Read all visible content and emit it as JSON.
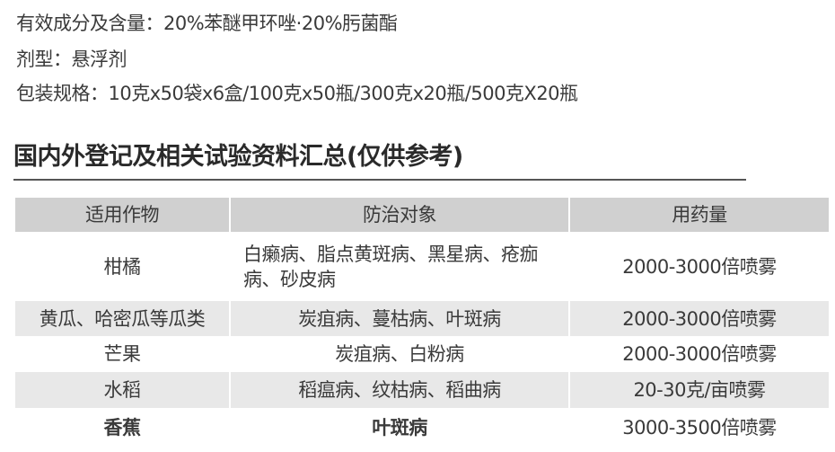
{
  "info": {
    "ingredient": "有效成分及含量：20%苯醚甲环唑·20%肟菌酯",
    "formulation": "剂型：悬浮剂",
    "packaging": "包装规格：10克x50袋x6盒/100克x50瓶/300克x20瓶/500克X20瓶"
  },
  "section_title": "国内外登记及相关试验资料汇总(仅供参考)",
  "table": {
    "headers": [
      "适用作物",
      "防治对象",
      "用药量"
    ],
    "rows": [
      {
        "crop": "柑橘",
        "target": "白癞病、脂点黄斑病、黑星病、疮痂病、砂皮病",
        "dosage": "2000-3000倍喷雾"
      },
      {
        "crop": "黄瓜、哈密瓜等瓜类",
        "target": "炭疽病、蔓枯病、叶斑病",
        "dosage": "2000-3000倍喷雾"
      },
      {
        "crop": "芒果",
        "target": "炭疽病、白粉病",
        "dosage": "2000-3000倍喷雾"
      },
      {
        "crop": "水稻",
        "target": "稻瘟病、纹枯病、稻曲病",
        "dosage": "20-30克/亩喷雾"
      },
      {
        "crop": "香蕉",
        "target": "叶斑病",
        "dosage": "3000-3500倍喷雾"
      }
    ]
  }
}
